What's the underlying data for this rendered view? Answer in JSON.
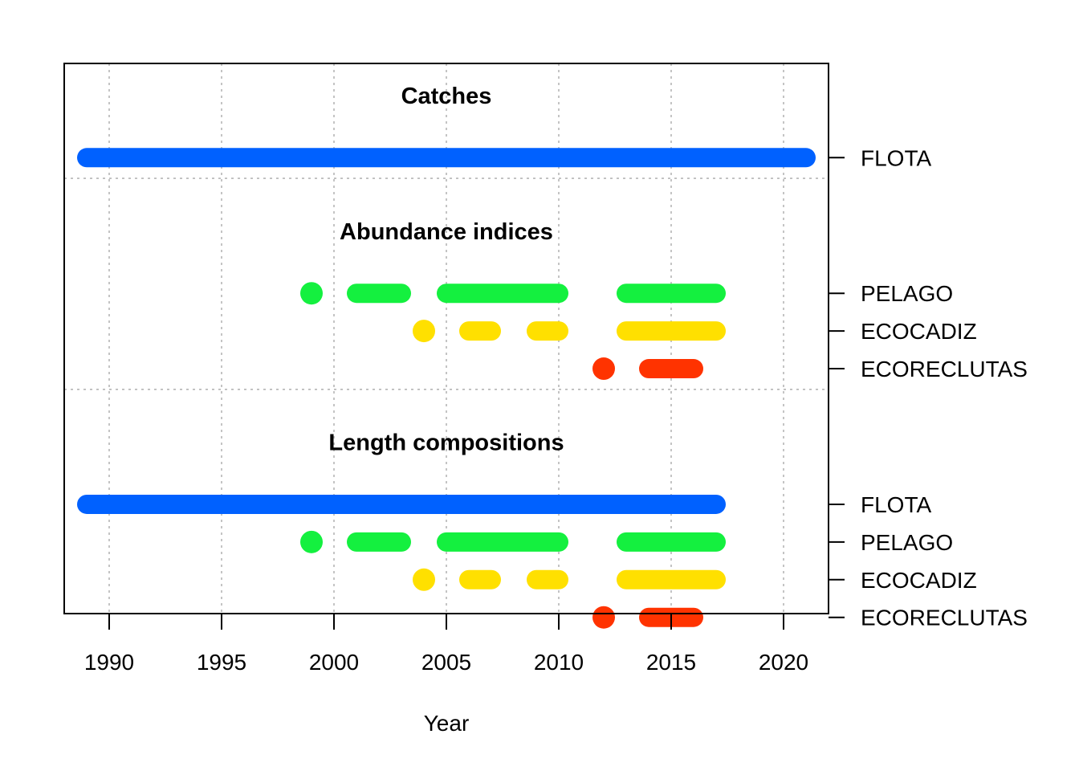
{
  "chart_data": {
    "type": "timeline",
    "xlabel": "Year",
    "xlim": [
      1988,
      2022
    ],
    "x_ticks": [
      1990,
      1995,
      2000,
      2005,
      2010,
      2015,
      2020
    ],
    "grid": true,
    "colors": {
      "FLOTA": "#0061FF",
      "PELAGO": "#14F03F",
      "ECOCADIZ": "#FFE000",
      "ECORECLUTAS": "#FF3300"
    },
    "sections": [
      {
        "title": "Catches",
        "rows": [
          {
            "label": "FLOTA",
            "color_key": "FLOTA",
            "segments": [
              [
                1989,
                2021
              ]
            ]
          }
        ]
      },
      {
        "title": "Abundance indices",
        "rows": [
          {
            "label": "PELAGO",
            "color_key": "PELAGO",
            "segments": [
              [
                1999,
                1999
              ],
              [
                2001,
                2003
              ],
              [
                2005,
                2010
              ],
              [
                2013,
                2017
              ]
            ]
          },
          {
            "label": "ECOCADIZ",
            "color_key": "ECOCADIZ",
            "segments": [
              [
                2004,
                2004
              ],
              [
                2006,
                2007
              ],
              [
                2009,
                2010
              ],
              [
                2013,
                2017
              ]
            ]
          },
          {
            "label": "ECORECLUTAS",
            "color_key": "ECORECLUTAS",
            "segments": [
              [
                2012,
                2012
              ],
              [
                2014,
                2016
              ]
            ]
          }
        ]
      },
      {
        "title": "Length compositions",
        "rows": [
          {
            "label": "FLOTA",
            "color_key": "FLOTA",
            "segments": [
              [
                1989,
                2017
              ]
            ]
          },
          {
            "label": "PELAGO",
            "color_key": "PELAGO",
            "segments": [
              [
                1999,
                1999
              ],
              [
                2001,
                2003
              ],
              [
                2005,
                2010
              ],
              [
                2013,
                2017
              ]
            ]
          },
          {
            "label": "ECOCADIZ",
            "color_key": "ECOCADIZ",
            "segments": [
              [
                2004,
                2004
              ],
              [
                2006,
                2007
              ],
              [
                2009,
                2010
              ],
              [
                2013,
                2017
              ]
            ]
          },
          {
            "label": "ECORECLUTAS",
            "color_key": "ECORECLUTAS",
            "segments": [
              [
                2012,
                2012
              ],
              [
                2014,
                2016
              ]
            ]
          }
        ]
      }
    ]
  }
}
